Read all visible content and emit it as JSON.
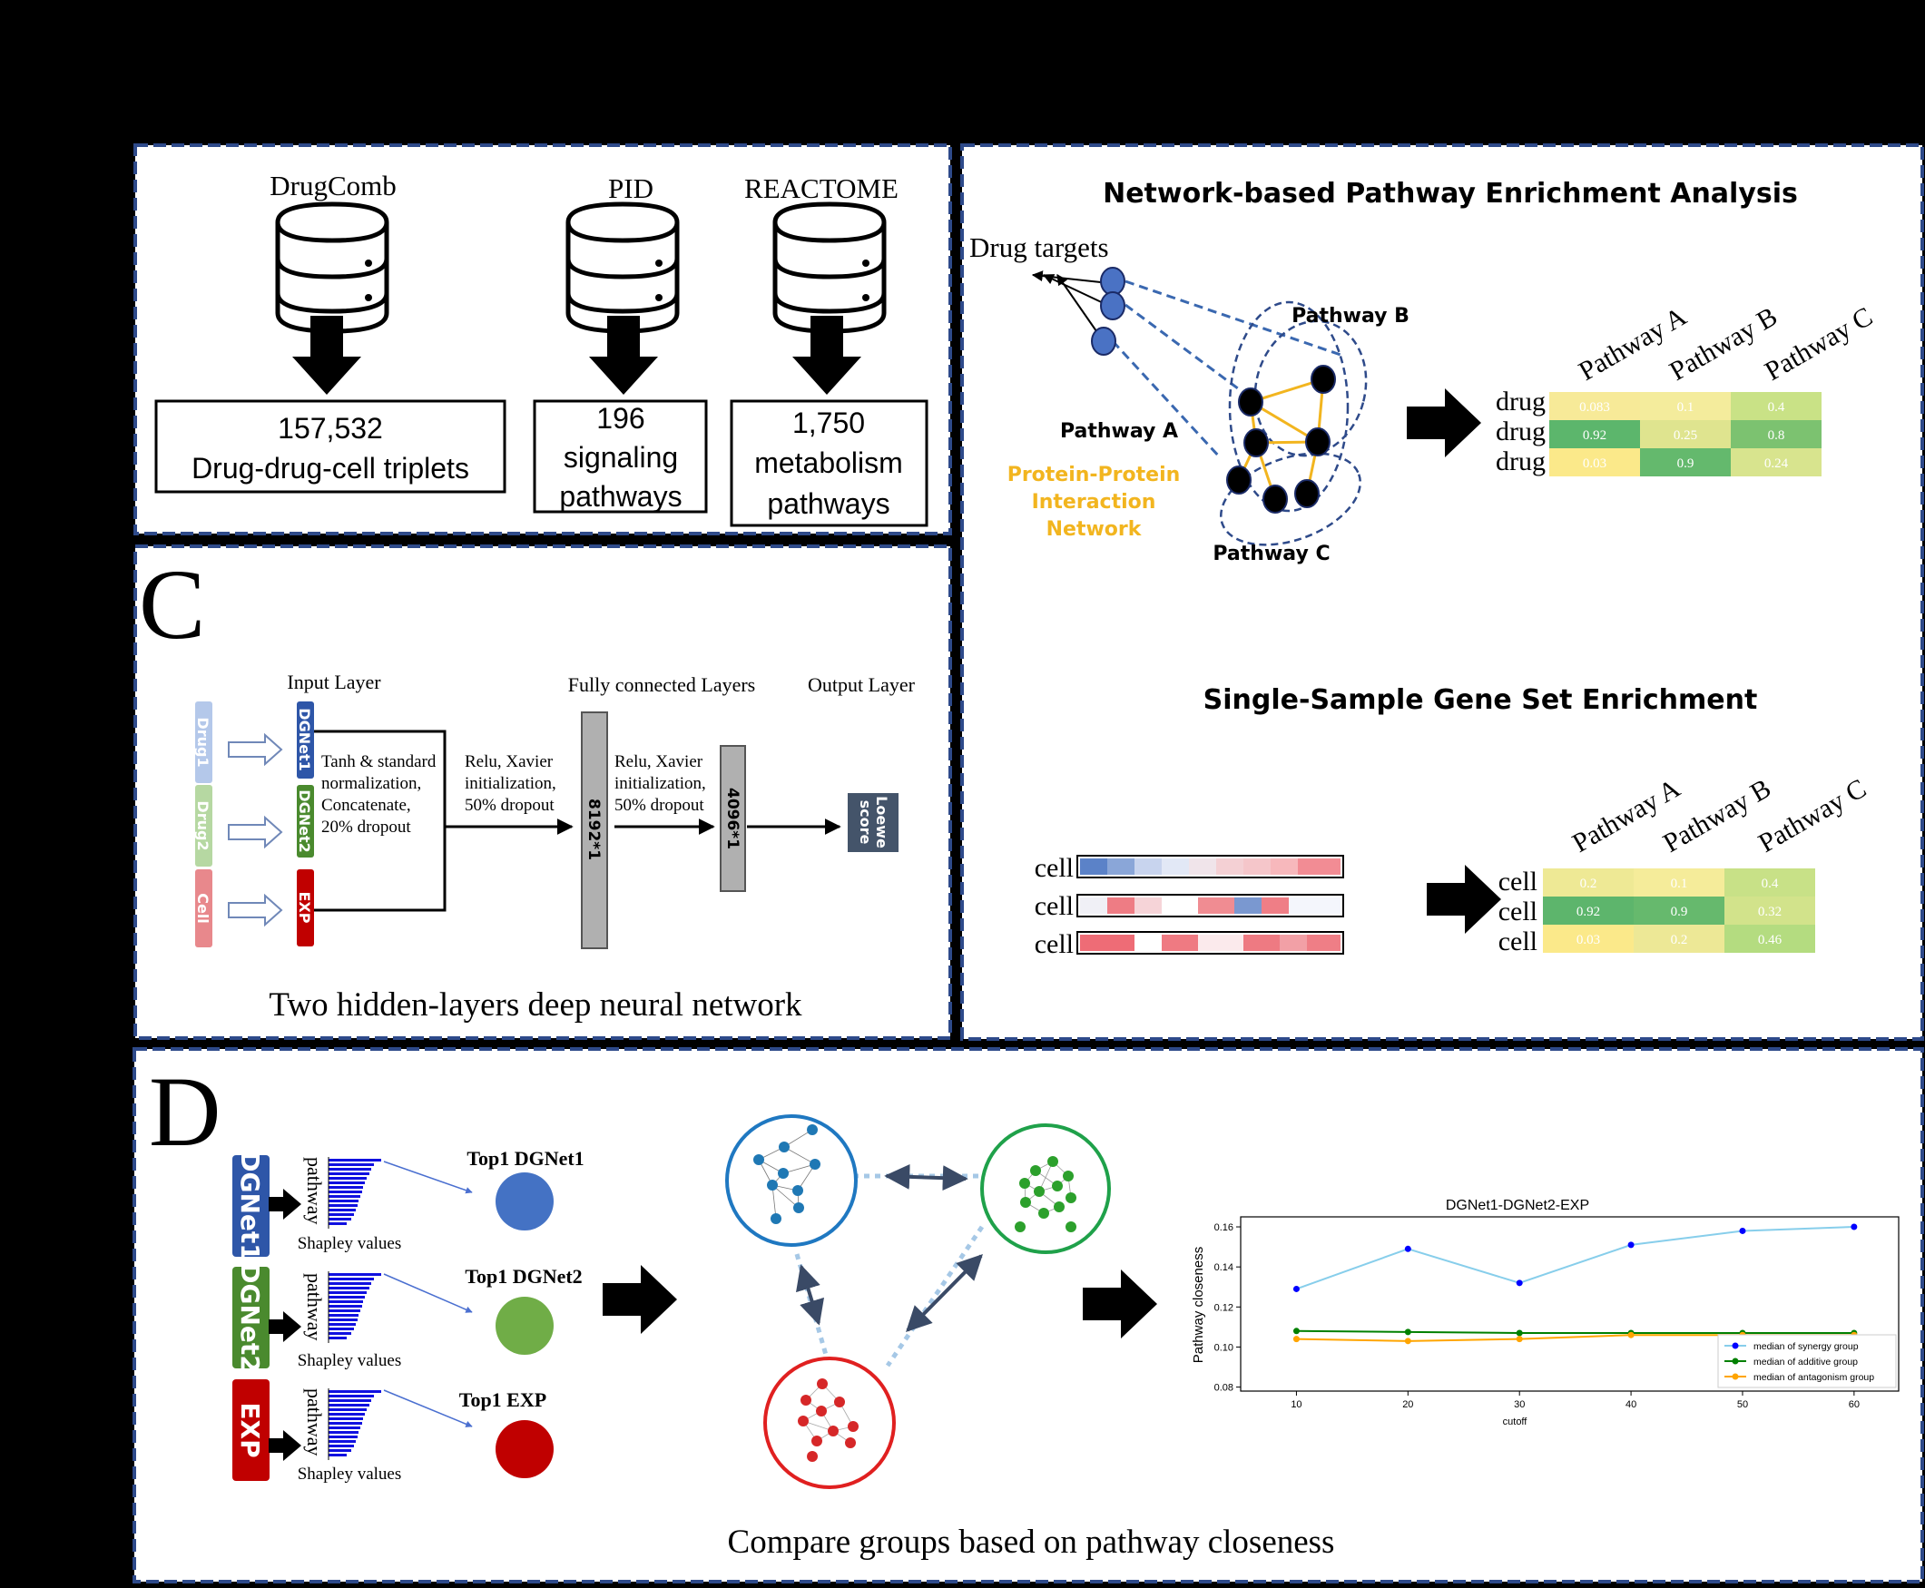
{
  "colors": {
    "panel_border": "#2e4a8a",
    "dgnet1": "#2e56a8",
    "dgnet2": "#4a8a2e",
    "exp": "#c00000",
    "ppi": "#f2b51f",
    "shapley_bar": "#1010e0",
    "synergy": "#0000ff",
    "synergy_line": "#87ceeb",
    "additive": "#008000",
    "antagonism": "#ffa500"
  },
  "panel_a": {
    "sources": [
      {
        "name": "DrugComb",
        "count": "157,532",
        "desc": "Drug-drug-cell triplets"
      },
      {
        "name": "PID",
        "count": "196",
        "desc": "signaling pathways"
      },
      {
        "name": "REACTOME",
        "count": "1,750",
        "desc": "metabolism pathways"
      }
    ],
    "pid_desc_line1": "signaling",
    "pid_desc_line2": "pathways",
    "reactome_desc_line1": "metabolism",
    "reactome_desc_line2": "pathways"
  },
  "panel_b": {
    "title_network": "Network-based Pathway Enrichment Analysis",
    "drug_targets": "Drug targets",
    "pathway_a": "Pathway A",
    "pathway_b": "Pathway B",
    "pathway_c": "Pathway C",
    "ppi_line1": "Protein-Protein",
    "ppi_line2": "Interaction",
    "ppi_line3": "Network",
    "drug_table": {
      "columns": [
        "Pathway A",
        "Pathway B",
        "Pathway C"
      ],
      "rows": [
        {
          "label": "drug",
          "values": [
            "0.083",
            "0.1",
            "0.4"
          ]
        },
        {
          "label": "drug",
          "values": [
            "0.92",
            "0.25",
            "0.8"
          ]
        },
        {
          "label": "drug",
          "values": [
            "0.03",
            "0.9",
            "0.24"
          ]
        }
      ]
    },
    "title_ssgsea": "Single-Sample Gene Set Enrichment",
    "cell_strip_label": "cell",
    "cell_table": {
      "columns": [
        "Pathway A",
        "Pathway B",
        "Pathway C"
      ],
      "rows": [
        {
          "label": "cell",
          "values": [
            "0.2",
            "0.1",
            "0.4"
          ]
        },
        {
          "label": "cell",
          "values": [
            "0.92",
            "0.9",
            "0.32"
          ]
        },
        {
          "label": "cell",
          "values": [
            "0.03",
            "0.2",
            "0.46"
          ]
        }
      ]
    }
  },
  "panel_c": {
    "letter": "C",
    "input_layer": "Input Layer",
    "fc_layers": "Fully connected Layers",
    "output_layer": "Output Layer",
    "inputs": [
      "Drug1",
      "Drug2",
      "Cell"
    ],
    "features": [
      "DGNet1",
      "DGNet2",
      "EXP"
    ],
    "step1_lines": [
      "Tanh & standard",
      "normalization,",
      "Concatenate,",
      "20% dropout"
    ],
    "step2_lines": [
      "Relu, Xavier",
      "initialization,",
      "50% dropout"
    ],
    "step3_lines": [
      "Relu, Xavier",
      "initialization,",
      "50% dropout"
    ],
    "layer1": "8192*1",
    "layer2": "4096*1",
    "output_line1": "Loewe",
    "output_line2": "score",
    "caption": "Two hidden-layers deep neural network"
  },
  "panel_d": {
    "letter": "D",
    "features": [
      "DGNet1",
      "DGNet2",
      "EXP"
    ],
    "y_label": "pathway",
    "x_label": "Shapley values",
    "top_labels": [
      "Top1 DGNet1",
      "Top1 DGNet2",
      "Top1 EXP"
    ],
    "caption": "Compare groups based on pathway closeness"
  },
  "chart_data": {
    "type": "line",
    "title": "DGNet1-DGNet2-EXP",
    "xlabel": "cutoff",
    "ylabel": "Pathway closeness",
    "x": [
      10,
      20,
      30,
      40,
      50,
      60
    ],
    "xticks": [
      "10",
      "20",
      "30",
      "40",
      "50",
      "60"
    ],
    "yticks": [
      "0.08",
      "0.10",
      "0.12",
      "0.14",
      "0.16"
    ],
    "ylim": [
      0.078,
      0.165
    ],
    "xlim": [
      5,
      64
    ],
    "legend": "bottom-right",
    "series": [
      {
        "name": "median of synergy group",
        "values": [
          0.129,
          0.149,
          0.132,
          0.151,
          0.158,
          0.16
        ],
        "color": "#0000ff",
        "line": "#87ceeb"
      },
      {
        "name": "median of additive group",
        "values": [
          0.108,
          0.1075,
          0.107,
          0.107,
          0.107,
          0.107
        ],
        "color": "#008000",
        "line": "#008000"
      },
      {
        "name": "median of antagonism group",
        "values": [
          0.104,
          0.103,
          0.104,
          0.106,
          0.106,
          0.106
        ],
        "color": "#ffa500",
        "line": "#ffa500"
      }
    ]
  }
}
